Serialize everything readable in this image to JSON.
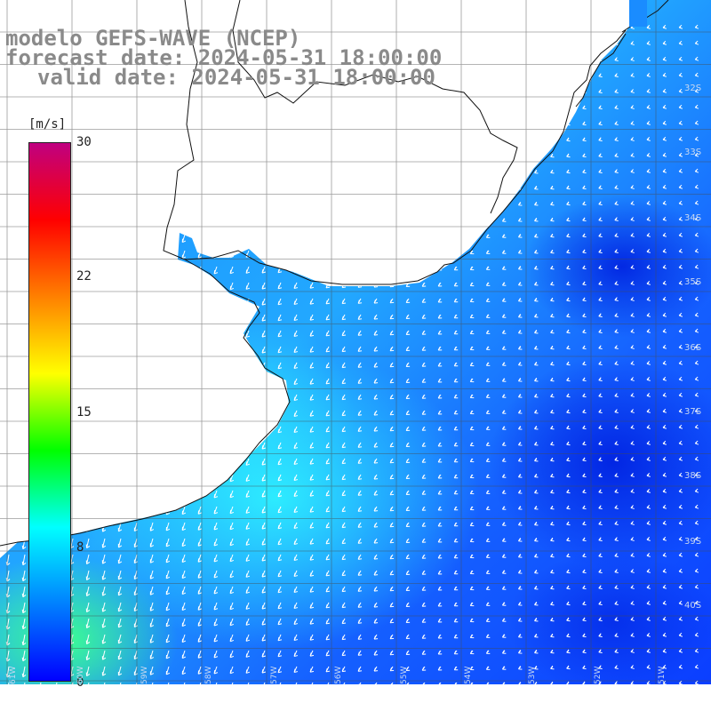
{
  "title": {
    "line1": "modelo GEFS-WAVE (NCEP)",
    "line2": "forecast date: 2024-05-31 18:00:00",
    "line3": "valid date: 2024-05-31 18:00:00"
  },
  "colorbar": {
    "unit": "[m/s]",
    "ticks": [
      "30",
      "22",
      "15",
      "8",
      "0"
    ],
    "range": [
      0,
      30
    ],
    "colors": [
      "#0000ff",
      "#0080ff",
      "#00ffff",
      "#00ff00",
      "#ffff00",
      "#ff8000",
      "#ff0000",
      "#c00080"
    ]
  },
  "map": {
    "latitude_labels": [
      "32S",
      "33S",
      "34S",
      "35S",
      "36S",
      "37S",
      "38S",
      "39S",
      "40S"
    ],
    "longitude_labels": [
      "61W",
      "60W",
      "59W",
      "58W",
      "57W",
      "56W",
      "55W",
      "54W",
      "53W",
      "52W",
      "51W"
    ],
    "land_color": "#ffffff",
    "grid": true,
    "arrows": "white wind direction arrows"
  }
}
